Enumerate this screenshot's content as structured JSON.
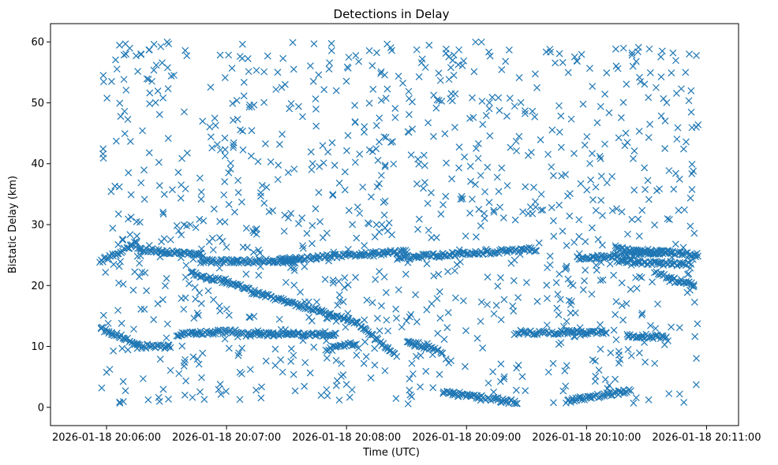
{
  "chart_data": {
    "type": "scatter",
    "title": "Detections in Delay",
    "xlabel": "Time (UTC)",
    "ylabel": "Bistatic Delay (km)",
    "x_tick_labels": [
      "2026-01-18 20:06:00",
      "2026-01-18 20:07:00",
      "2026-01-18 20:08:00",
      "2026-01-18 20:09:00",
      "2026-01-18 20:10:00",
      "2026-01-18 20:11:00"
    ],
    "x_ticks_seconds": [
      0,
      60,
      120,
      180,
      240,
      300
    ],
    "y_ticks": [
      0,
      10,
      20,
      30,
      40,
      50,
      60
    ],
    "xlim_seconds": [
      -28,
      316
    ],
    "ylim": [
      -3,
      63
    ],
    "x_origin": "2026-01-18 20:06:00",
    "marker": "x",
    "color": "#1f77b4",
    "grid": false,
    "series": [
      {
        "name": "",
        "tracks": [
          {
            "x": [
              -3,
              15
            ],
            "y": [
              24,
              27
            ]
          },
          {
            "x": [
              15,
              48
            ],
            "y": [
              26,
              25
            ]
          },
          {
            "x": [
              47,
              95
            ],
            "y": [
              24,
              24
            ]
          },
          {
            "x": [
              87,
              150
            ],
            "y": [
              24.2,
              25.6
            ]
          },
          {
            "x": [
              42,
              72
            ],
            "y": [
              22,
              19.5
            ]
          },
          {
            "x": [
              73,
              125
            ],
            "y": [
              19,
              14
            ]
          },
          {
            "x": [
              125,
              145
            ],
            "y": [
              14,
              8.5
            ]
          },
          {
            "x": [
              -3,
              15
            ],
            "y": [
              13,
              10.5
            ]
          },
          {
            "x": [
              15,
              32
            ],
            "y": [
              10,
              10
            ]
          },
          {
            "x": [
              35,
              65
            ],
            "y": [
              12,
              12.5
            ]
          },
          {
            "x": [
              65,
              115
            ],
            "y": [
              12,
              12
            ]
          },
          {
            "x": [
              110,
              125
            ],
            "y": [
              9.5,
              10.5
            ]
          },
          {
            "x": [
              145,
              215
            ],
            "y": [
              24.5,
              26
            ]
          },
          {
            "x": [
              150,
              168
            ],
            "y": [
              11,
              9
            ]
          },
          {
            "x": [
              168,
              205
            ],
            "y": [
              2.5,
              0.8
            ]
          },
          {
            "x": [
              205,
              250
            ],
            "y": [
              12.3,
              12.3
            ]
          },
          {
            "x": [
              235,
              282
            ],
            "y": [
              24.5,
              25.5
            ]
          },
          {
            "x": [
              255,
              296
            ],
            "y": [
              26,
              25
            ]
          },
          {
            "x": [
              255,
              292
            ],
            "y": [
              24,
              23.5
            ]
          },
          {
            "x": [
              275,
              294
            ],
            "y": [
              22,
              20
            ]
          },
          {
            "x": [
              260,
              280
            ],
            "y": [
              11.8,
              11.5
            ]
          },
          {
            "x": [
              230,
              262
            ],
            "y": [
              1,
              2.8
            ]
          }
        ],
        "scatter_count": 1050,
        "x_range_seconds": [
          -3,
          296
        ],
        "y_range": [
          0.5,
          60
        ]
      }
    ]
  }
}
